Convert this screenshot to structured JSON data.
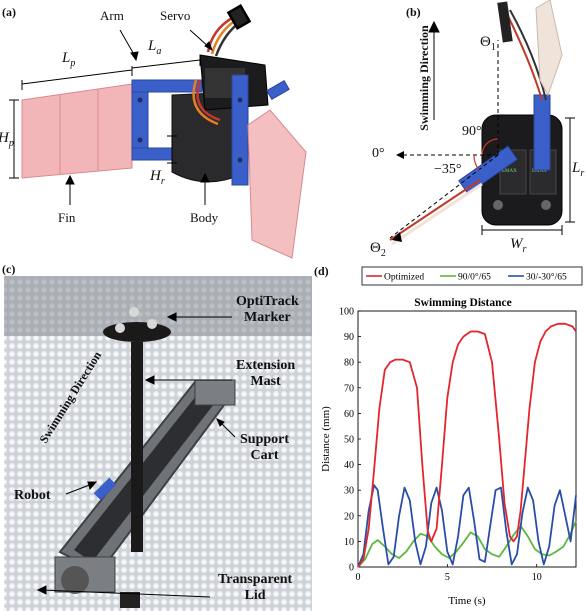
{
  "panel_a": {
    "label": "(a)",
    "arm": "Arm",
    "servo": "Servo",
    "lp": "L",
    "lp_sub": "p",
    "la": "L",
    "la_sub": "a",
    "hp": "H",
    "hp_sub": "p",
    "hr": "H",
    "hr_sub": "r",
    "fin": "Fin",
    "body": "Body"
  },
  "panel_b": {
    "label": "(b)",
    "direction": "Swimming Direction",
    "theta1": "Θ",
    "theta1_sub": "1",
    "theta2": "Θ",
    "theta2_sub": "2",
    "angle90": "90°",
    "angle0": "0°",
    "angle35": "−35°",
    "lr": "L",
    "lr_sub": "r",
    "wr": "W",
    "wr_sub": "r"
  },
  "panel_c": {
    "label": "(c)",
    "marker": "OptiTrack\nMarker",
    "mast": "Extension\nMast",
    "cart": "Support\nCart",
    "lid": "Transparent\nLid",
    "robot": "Robot",
    "direction": "Swimming Direction"
  },
  "panel_d": {
    "label": "(d)",
    "colors": {
      "optimized": "#e3262b",
      "s90": "#5cb83c",
      "s30": "#2a4ea8"
    },
    "chart_data": {
      "type": "line",
      "title": "Swimming Distance",
      "xlabel": "Time (s)",
      "ylabel": "Distance (mm)",
      "xlim": [
        0,
        12.2
      ],
      "ylim": [
        0,
        100
      ],
      "xticks": [
        0,
        5,
        10
      ],
      "yticks": [
        0,
        10,
        20,
        30,
        40,
        50,
        60,
        70,
        80,
        90,
        100
      ],
      "grid": false,
      "legend_position": "top",
      "series": [
        {
          "name": "Optimized",
          "color": "#e3262b",
          "x": [
            0,
            0.3,
            0.6,
            0.9,
            1.2,
            1.5,
            1.8,
            2.1,
            2.5,
            2.9,
            3.3,
            3.6,
            3.9,
            4.1,
            4.4,
            4.7,
            5.0,
            5.3,
            5.6,
            5.9,
            6.3,
            6.7,
            7.1,
            7.5,
            7.9,
            8.2,
            8.5,
            8.7,
            8.9,
            9.1,
            9.3,
            9.6,
            9.9,
            10.2,
            10.5,
            10.8,
            11.2,
            11.6,
            12.0,
            12.2
          ],
          "values": [
            0,
            3,
            15,
            38,
            62,
            77,
            80,
            81,
            81,
            80,
            70,
            40,
            14,
            10,
            15,
            40,
            66,
            80,
            87,
            90,
            92,
            92,
            91,
            80,
            50,
            25,
            12,
            10,
            12,
            22,
            38,
            62,
            80,
            88,
            92,
            94,
            95,
            95,
            94,
            92
          ]
        },
        {
          "name": "90/0°/65",
          "color": "#5cb83c",
          "x": [
            0,
            0.4,
            0.8,
            1.1,
            1.5,
            1.9,
            2.3,
            2.7,
            3.1,
            3.5,
            3.9,
            4.3,
            4.7,
            5.1,
            5.5,
            5.9,
            6.3,
            6.7,
            7.1,
            7.5,
            7.9,
            8.3,
            8.7,
            9.1,
            9.5,
            9.9,
            10.3,
            10.7,
            11.1,
            11.5,
            11.9,
            12.2
          ],
          "values": [
            0,
            3,
            9,
            10.5,
            8,
            5,
            3.5,
            6,
            10,
            13,
            12,
            8,
            5,
            3.5,
            6,
            9.5,
            13.5,
            12,
            7,
            5,
            4,
            8,
            12.5,
            16,
            12,
            7,
            5,
            4.5,
            6,
            8,
            13,
            18
          ]
        },
        {
          "name": "30/-30°/65",
          "color": "#2a4ea8",
          "x": [
            0,
            0.3,
            0.6,
            0.9,
            1.1,
            1.4,
            1.7,
            2.0,
            2.3,
            2.6,
            2.9,
            3.2,
            3.5,
            3.8,
            4.1,
            4.4,
            4.7,
            5.0,
            5.3,
            5.6,
            5.9,
            6.2,
            6.5,
            6.8,
            7.1,
            7.4,
            7.7,
            8.0,
            8.3,
            8.6,
            8.9,
            9.2,
            9.5,
            9.8,
            10.1,
            10.4,
            10.7,
            11.0,
            11.3,
            11.6,
            11.9,
            12.2
          ],
          "values": [
            0,
            5,
            22,
            32,
            30,
            15,
            1,
            4,
            20,
            31,
            26,
            10,
            1,
            8,
            25,
            31,
            22,
            6,
            1,
            12,
            28,
            31,
            18,
            3,
            2,
            16,
            30,
            31,
            14,
            1,
            5,
            21,
            31,
            26,
            10,
            1,
            8,
            24,
            30,
            20,
            10,
            28
          ]
        }
      ]
    }
  }
}
